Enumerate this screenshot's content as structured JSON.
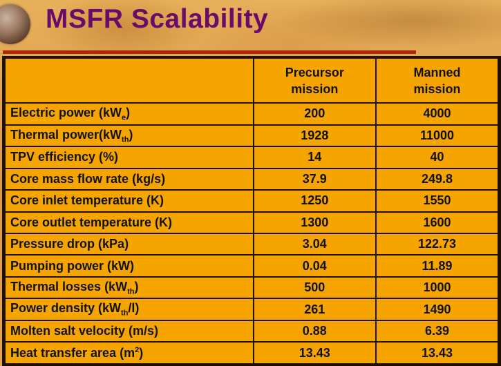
{
  "slide": {
    "title": "MSFR Scalability"
  },
  "table": {
    "headers": {
      "precursor_line1": "Precursor",
      "precursor_line2": "mission",
      "manned_line1": "Manned",
      "manned_line2": "mission"
    },
    "rows": [
      {
        "label": "Electric power  (kW",
        "sub": "e",
        "suffix": ")",
        "precursor": "200",
        "manned": "4000"
      },
      {
        "label": "Thermal power(kW",
        "sub": "th",
        "suffix": ")",
        "precursor": "1928",
        "manned": "11000"
      },
      {
        "label": "TPV efficiency (%)",
        "precursor": "14",
        "manned": "40"
      },
      {
        "label": "Core mass flow rate (kg/s)",
        "precursor": "37.9",
        "manned": "249.8"
      },
      {
        "label": "Core inlet temperature (K)",
        "precursor": "1250",
        "manned": "1550"
      },
      {
        "label": "Core outlet temperature (K)",
        "precursor": "1300",
        "manned": "1600"
      },
      {
        "label": "Pressure drop (kPa)",
        "precursor": "3.04",
        "manned": "122.73"
      },
      {
        "label": "Pumping power (kW)",
        "precursor": "0.04",
        "manned": "11.89"
      },
      {
        "label": "Thermal losses (kW",
        "sub": "th",
        "suffix": ")",
        "precursor": "500",
        "manned": "1000"
      },
      {
        "label": "Power density (kW",
        "sub": "th",
        "suffix": "/l)",
        "precursor": "261",
        "manned": "1490"
      },
      {
        "label": "Molten salt velocity (m/s)",
        "precursor": "0.88",
        "manned": "6.39"
      },
      {
        "label": "Heat transfer area (m",
        "sup": "2",
        "suffix": ")",
        "precursor": "13.43",
        "manned": "13.43"
      }
    ]
  },
  "colors": {
    "title": "#6a0a6a",
    "table_fill": "#f5a400",
    "rule": "#b0250e"
  }
}
